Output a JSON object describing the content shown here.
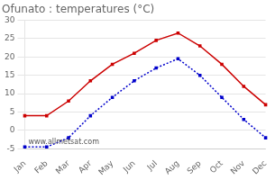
{
  "chart_data": {
    "type": "line",
    "title": "Ofunato : temperatures (°C)",
    "categories": [
      "Jan",
      "Feb",
      "Mar",
      "Apr",
      "May",
      "Jun",
      "Jul",
      "Aug",
      "Sep",
      "Oct",
      "Nov",
      "Dec"
    ],
    "series": [
      {
        "color": "#cc0000",
        "marker": "square",
        "line_style": "solid",
        "values": [
          4.0,
          4.0,
          8.0,
          13.5,
          18.0,
          21.0,
          24.5,
          26.5,
          23.0,
          18.0,
          12.0,
          7.0
        ]
      },
      {
        "color": "#0000cc",
        "marker": "square",
        "line_style": "dotted",
        "values": [
          -4.5,
          -4.5,
          -2.0,
          4.0,
          9.0,
          13.5,
          17.0,
          19.5,
          15.0,
          9.0,
          3.0,
          -2.0
        ]
      }
    ],
    "ylim": [
      -5,
      30
    ],
    "yticks": [
      -5,
      0,
      5,
      10,
      15,
      20,
      25,
      30
    ],
    "grid": true,
    "annotations": [
      "www.allmetsat.com"
    ]
  }
}
